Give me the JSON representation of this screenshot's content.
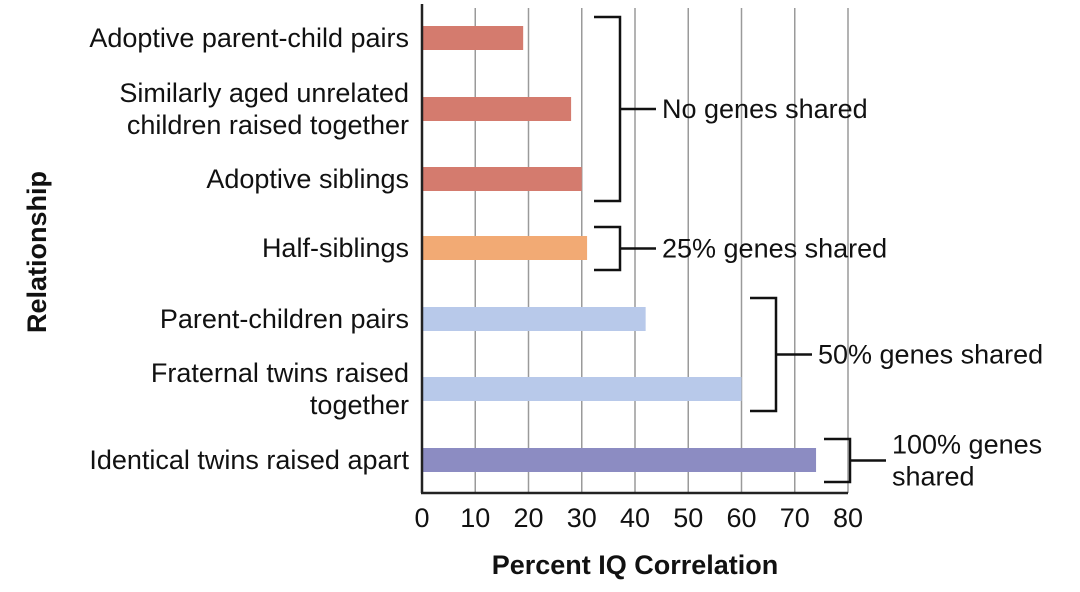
{
  "chart_data": {
    "type": "bar",
    "orientation": "horizontal",
    "xlabel": "Percent IQ Correlation",
    "ylabel": "Relationship",
    "xlim": [
      0,
      80
    ],
    "x_ticks": [
      "0",
      "10",
      "20",
      "30",
      "40",
      "50",
      "60",
      "70",
      "80"
    ],
    "grid": "vertical",
    "categories": [
      [
        "Adoptive parent-child pairs"
      ],
      [
        "Similarly aged unrelated",
        "children raised together"
      ],
      [
        "Adoptive siblings"
      ],
      [
        "Half-siblings"
      ],
      [
        "Parent-children pairs"
      ],
      [
        "Fraternal twins raised",
        "together"
      ],
      [
        "Identical twins raised apart"
      ]
    ],
    "values": [
      19,
      28,
      30,
      31,
      42,
      60,
      74
    ],
    "bar_colors": [
      "#d47b6e",
      "#d47b6e",
      "#d47b6e",
      "#f2aa74",
      "#b8c9ea",
      "#b8c9ea",
      "#8c8cc2"
    ],
    "groups": [
      {
        "label": [
          "No genes shared"
        ],
        "from": 0,
        "to": 2
      },
      {
        "label": [
          "25% genes shared"
        ],
        "from": 3,
        "to": 3
      },
      {
        "label": [
          "50% genes shared"
        ],
        "from": 4,
        "to": 5
      },
      {
        "label": [
          "100% genes",
          "shared"
        ],
        "from": 6,
        "to": 6
      }
    ]
  }
}
